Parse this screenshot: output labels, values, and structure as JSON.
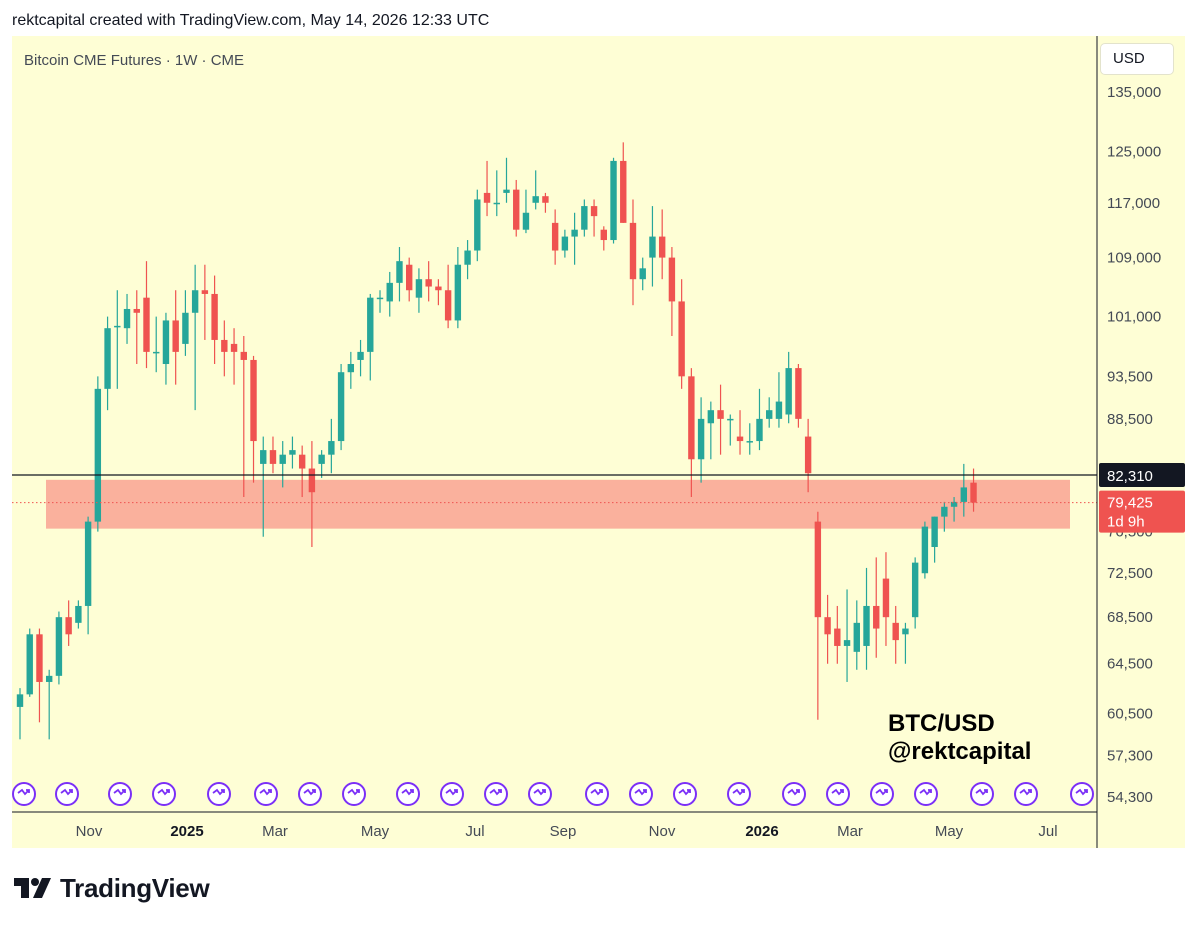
{
  "header": {
    "text": "rektcapital created with TradingView.com, May 14, 2026 12:33 UTC"
  },
  "chart_header": {
    "title": "Bitcoin CME Futures · 1W · CME",
    "currency_button": "USD"
  },
  "watermark": {
    "line1": "BTC/USD",
    "line2": "@rektcapital"
  },
  "footer": {
    "brand": "TradingView",
    "logo_icon": "tradingview-logo-icon"
  },
  "colors": {
    "background": "#fefed5",
    "up": "#26a69a",
    "down": "#ef5350",
    "zone": "#f9a393",
    "price_label": "#ef5350",
    "level_label": "#131722",
    "event_icon": "#7b2ff7"
  },
  "chart_data": {
    "type": "candlestick",
    "title": "Bitcoin CME Futures · 1W · CME",
    "price_axis": {
      "scale": "log",
      "ticks": [
        "135,000",
        "125,000",
        "117,000",
        "109,000",
        "101,000",
        "93,500",
        "88,500",
        "76,500",
        "72,500",
        "68,500",
        "64,500",
        "60,500",
        "57,300",
        "54,300"
      ],
      "tick_values": [
        135000,
        125000,
        117000,
        109000,
        101000,
        93500,
        88500,
        76500,
        72500,
        68500,
        64500,
        60500,
        57300,
        54300
      ]
    },
    "time_axis": {
      "labels": [
        "Nov",
        "2025",
        "Mar",
        "May",
        "Jul",
        "Sep",
        "Nov",
        "2026",
        "Mar",
        "May",
        "Jul"
      ],
      "bold_labels": [
        "2025",
        "2026"
      ]
    },
    "horizontal_level": {
      "label": "82,310",
      "value": 82310
    },
    "current_price": {
      "label": "79,425",
      "countdown": "1d 9h",
      "value": 79425
    },
    "support_zone": {
      "top": 81800,
      "bottom": 76800,
      "color": "#f9a393"
    },
    "event_markers_count": 24,
    "series": [
      {
        "name": "BTC/USD",
        "ohlc": [
          [
            61000,
            62500,
            58500,
            62000
          ],
          [
            62000,
            67500,
            61800,
            67000
          ],
          [
            67000,
            67500,
            59800,
            63000
          ],
          [
            63000,
            64000,
            58500,
            63500
          ],
          [
            63500,
            69000,
            62800,
            68500
          ],
          [
            68500,
            70000,
            66000,
            67000
          ],
          [
            68000,
            70000,
            67500,
            69500
          ],
          [
            69500,
            78000,
            67000,
            77500
          ],
          [
            77500,
            93500,
            76500,
            92000
          ],
          [
            92000,
            101000,
            89500,
            99500
          ],
          [
            99800,
            104500,
            92000,
            99800
          ],
          [
            99500,
            104000,
            97500,
            102000
          ],
          [
            102000,
            104500,
            95000,
            101500
          ],
          [
            103500,
            108500,
            94500,
            96500
          ],
          [
            96500,
            101000,
            94000,
            96500
          ],
          [
            95000,
            101500,
            92500,
            100500
          ],
          [
            100500,
            104500,
            92500,
            96500
          ],
          [
            97500,
            104500,
            96000,
            101500
          ],
          [
            101500,
            108000,
            89500,
            104500
          ],
          [
            104500,
            108000,
            98000,
            104000
          ],
          [
            104000,
            106500,
            95000,
            98000
          ],
          [
            98000,
            100500,
            93500,
            96500
          ],
          [
            97500,
            99500,
            92500,
            96500
          ],
          [
            96500,
            98500,
            80000,
            95500
          ],
          [
            95500,
            96000,
            81500,
            86000
          ],
          [
            83500,
            86500,
            76000,
            85000
          ],
          [
            85000,
            86500,
            82500,
            83500
          ],
          [
            83500,
            86000,
            81000,
            84500
          ],
          [
            84500,
            86500,
            83000,
            85000
          ],
          [
            84500,
            85500,
            80000,
            83000
          ],
          [
            83000,
            86000,
            75000,
            80500
          ],
          [
            83500,
            85000,
            82000,
            84500
          ],
          [
            84500,
            88500,
            82500,
            86000
          ],
          [
            86000,
            95000,
            85000,
            94000
          ],
          [
            94000,
            96500,
            92000,
            95000
          ],
          [
            95500,
            98000,
            93500,
            96500
          ],
          [
            96500,
            104000,
            93000,
            103500
          ],
          [
            103500,
            104500,
            101500,
            103500
          ],
          [
            103000,
            107000,
            101000,
            105500
          ],
          [
            105500,
            110500,
            103000,
            108500
          ],
          [
            108000,
            109000,
            103000,
            104500
          ],
          [
            103500,
            107500,
            101500,
            106000
          ],
          [
            106000,
            108500,
            103000,
            105000
          ],
          [
            105000,
            106000,
            102500,
            104500
          ],
          [
            104500,
            108000,
            99500,
            100500
          ],
          [
            100500,
            110500,
            99500,
            108000
          ],
          [
            108000,
            111500,
            106000,
            110000
          ],
          [
            110000,
            119000,
            108500,
            117500
          ],
          [
            118500,
            123500,
            115000,
            117000
          ],
          [
            117000,
            122000,
            115000,
            117000
          ],
          [
            118500,
            124000,
            117000,
            119000
          ],
          [
            119000,
            120500,
            112000,
            113000
          ],
          [
            113000,
            119000,
            112500,
            115500
          ],
          [
            117000,
            122000,
            116000,
            118000
          ],
          [
            118000,
            118500,
            115500,
            117000
          ],
          [
            114000,
            116000,
            108000,
            110000
          ],
          [
            110000,
            113000,
            109000,
            112000
          ],
          [
            112000,
            115500,
            108000,
            113000
          ],
          [
            113000,
            117500,
            112000,
            116500
          ],
          [
            116500,
            117500,
            112000,
            115000
          ],
          [
            113000,
            113500,
            110000,
            111500
          ],
          [
            111500,
            124000,
            111000,
            123500
          ],
          [
            123500,
            126500,
            114000,
            114000
          ],
          [
            114000,
            117500,
            102500,
            106000
          ],
          [
            106000,
            109000,
            104500,
            107500
          ],
          [
            109000,
            116500,
            105000,
            112000
          ],
          [
            112000,
            116000,
            106000,
            109000
          ],
          [
            109000,
            110500,
            98500,
            103000
          ],
          [
            103000,
            106000,
            92000,
            93500
          ],
          [
            93500,
            94500,
            80000,
            84000
          ],
          [
            84000,
            91000,
            81500,
            88500
          ],
          [
            88000,
            90500,
            84000,
            89500
          ],
          [
            89500,
            92500,
            84500,
            88500
          ],
          [
            88500,
            89000,
            85500,
            88500
          ],
          [
            86500,
            89500,
            84500,
            86000
          ],
          [
            86000,
            88000,
            84500,
            86000
          ],
          [
            86000,
            92000,
            85000,
            88500
          ],
          [
            88500,
            91000,
            87500,
            89500
          ],
          [
            88500,
            94000,
            87500,
            90500
          ],
          [
            89000,
            96500,
            88000,
            94500
          ],
          [
            94500,
            95000,
            87500,
            88500
          ],
          [
            86500,
            88500,
            80500,
            82500
          ],
          [
            77500,
            78500,
            60000,
            68500
          ],
          [
            68500,
            70500,
            64500,
            67000
          ],
          [
            67500,
            69500,
            64500,
            66000
          ],
          [
            66000,
            71000,
            63000,
            66500
          ],
          [
            65500,
            70000,
            64000,
            68000
          ],
          [
            66000,
            73000,
            64000,
            69500
          ],
          [
            69500,
            74000,
            65000,
            67500
          ],
          [
            72000,
            74500,
            66000,
            68500
          ],
          [
            68000,
            69500,
            64500,
            66500
          ],
          [
            67000,
            68000,
            64500,
            67500
          ],
          [
            68500,
            74000,
            67500,
            73500
          ],
          [
            72500,
            77500,
            72000,
            77000
          ],
          [
            75000,
            78000,
            73500,
            78000
          ],
          [
            78000,
            79500,
            76500,
            79000
          ],
          [
            79000,
            80000,
            77500,
            79500
          ],
          [
            79500,
            83500,
            78000,
            81000
          ],
          [
            81500,
            83000,
            78500,
            79425
          ]
        ]
      }
    ]
  }
}
